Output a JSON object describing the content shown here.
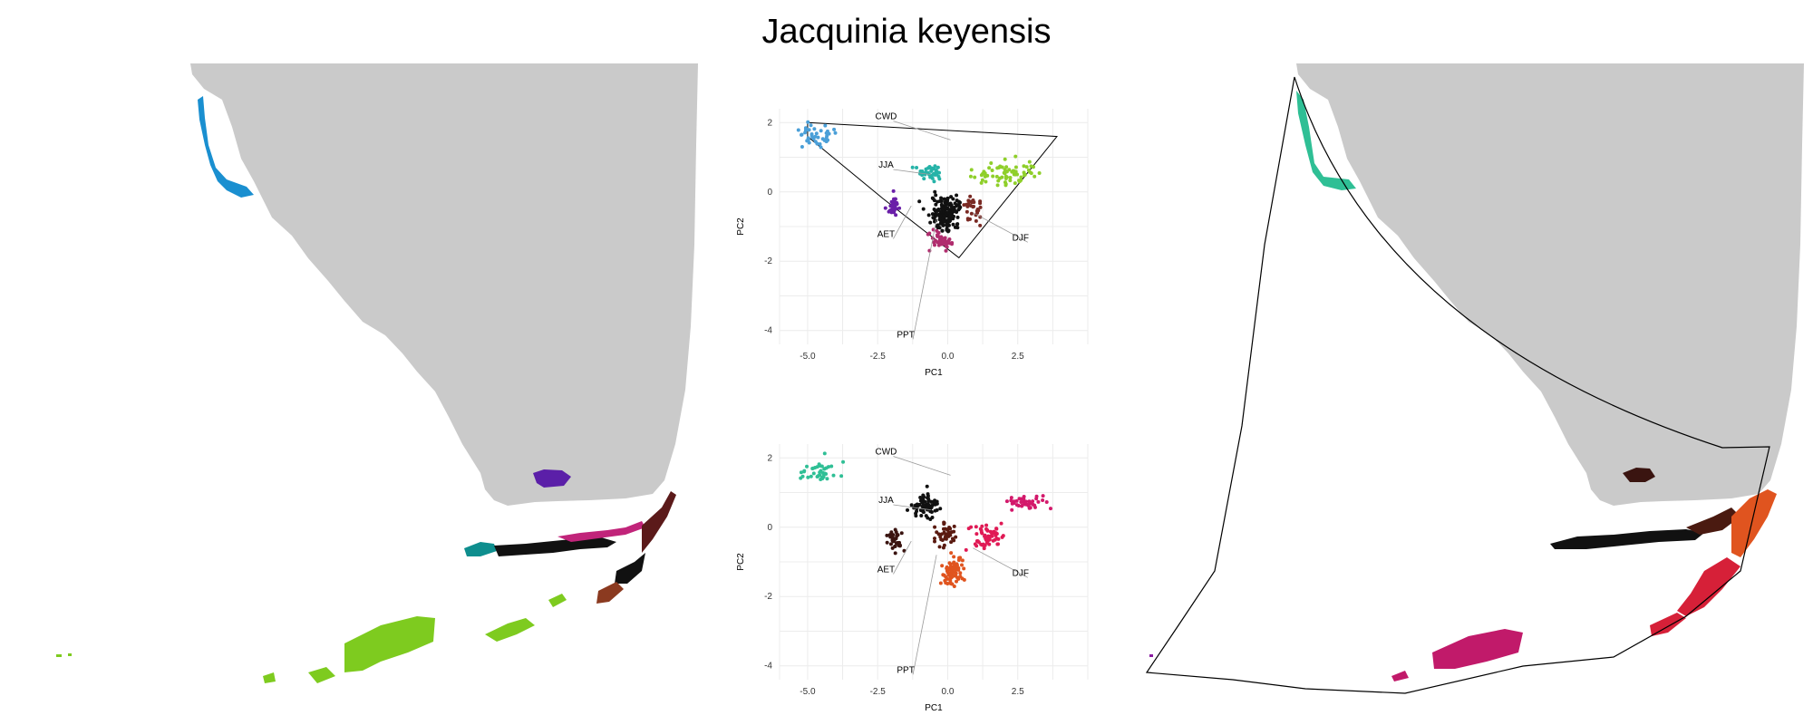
{
  "title": "Jacquinia keyensis",
  "chart_data": [
    {
      "type": "scatter",
      "panel": "pca-top",
      "xlabel": "PC1",
      "ylabel": "PC2",
      "xlim": [
        -6,
        5
      ],
      "ylim": [
        -4.4,
        2.4
      ],
      "xticks": [
        "-5.0",
        "-2.5",
        "0.0",
        "2.5"
      ],
      "xtick_values": [
        -5,
        -2.5,
        0,
        2.5
      ],
      "yticks": [
        "2",
        "0",
        "-2",
        "-4"
      ],
      "ytick_values": [
        2,
        0,
        -2,
        -4
      ],
      "grid": true,
      "vectors": [
        {
          "label": "CWD",
          "end": [
            0.1,
            1.5
          ],
          "label_pos": [
            -2.2,
            2.1
          ]
        },
        {
          "label": "JJA",
          "end": [
            -0.6,
            0.5
          ],
          "label_pos": [
            -2.2,
            0.7
          ]
        },
        {
          "label": "AET",
          "end": [
            -1.3,
            -0.4
          ],
          "label_pos": [
            -2.2,
            -1.3
          ]
        },
        {
          "label": "PPT",
          "end": [
            -0.4,
            -0.8
          ],
          "label_pos": [
            -1.5,
            -4.2
          ]
        },
        {
          "label": "DJF",
          "end": [
            0.9,
            -0.6
          ],
          "label_pos": [
            2.6,
            -1.4
          ]
        }
      ],
      "clusters": [
        {
          "center": [
            -4.6,
            1.6
          ],
          "spread": [
            0.55,
            0.25
          ],
          "count": 40,
          "color": "#4a9fd8"
        },
        {
          "center": [
            -0.6,
            0.6
          ],
          "spread": [
            0.35,
            0.25
          ],
          "count": 40,
          "color": "#26b3a8"
        },
        {
          "center": [
            -1.9,
            -0.4
          ],
          "spread": [
            0.22,
            0.22
          ],
          "count": 30,
          "color": "#6a1fa8"
        },
        {
          "center": [
            -0.1,
            -0.6
          ],
          "spread": [
            0.5,
            0.45
          ],
          "count": 160,
          "color": "#111111"
        },
        {
          "center": [
            -0.2,
            -1.4
          ],
          "spread": [
            0.35,
            0.25
          ],
          "count": 50,
          "color": "#b02d6e"
        },
        {
          "center": [
            2.2,
            0.5
          ],
          "spread": [
            1.0,
            0.35
          ],
          "count": 70,
          "color": "#8fcf2a"
        },
        {
          "center": [
            0.9,
            -0.5
          ],
          "spread": [
            0.3,
            0.3
          ],
          "count": 30,
          "color": "#7a2a24"
        }
      ],
      "hull": [
        [
          -5.0,
          2.0
        ],
        [
          3.9,
          1.6
        ],
        [
          0.4,
          -1.9
        ],
        [
          -2.3,
          -0.2
        ],
        [
          -5.0,
          1.6
        ]
      ]
    },
    {
      "type": "scatter",
      "panel": "pca-bottom",
      "xlabel": "PC1",
      "ylabel": "PC2",
      "xlim": [
        -6,
        5
      ],
      "ylim": [
        -4.4,
        2.4
      ],
      "xticks": [
        "-5.0",
        "-2.5",
        "0.0",
        "2.5"
      ],
      "xtick_values": [
        -5,
        -2.5,
        0,
        2.5
      ],
      "yticks": [
        "2",
        "0",
        "-2",
        "-4"
      ],
      "ytick_values": [
        2,
        0,
        -2,
        -4
      ],
      "grid": true,
      "vectors": [
        {
          "label": "CWD",
          "end": [
            0.1,
            1.5
          ],
          "label_pos": [
            -2.2,
            2.1
          ]
        },
        {
          "label": "JJA",
          "end": [
            -0.6,
            0.5
          ],
          "label_pos": [
            -2.2,
            0.7
          ]
        },
        {
          "label": "AET",
          "end": [
            -1.3,
            -0.4
          ],
          "label_pos": [
            -2.2,
            -1.3
          ]
        },
        {
          "label": "PPT",
          "end": [
            -0.4,
            -0.8
          ],
          "label_pos": [
            -1.5,
            -4.2
          ]
        },
        {
          "label": "DJF",
          "end": [
            0.9,
            -0.6
          ],
          "label_pos": [
            2.6,
            -1.4
          ]
        }
      ],
      "clusters": [
        {
          "center": [
            -4.6,
            1.6
          ],
          "spread": [
            0.5,
            0.25
          ],
          "count": 40,
          "color": "#2fbf95"
        },
        {
          "center": [
            -0.8,
            0.6
          ],
          "spread": [
            0.4,
            0.3
          ],
          "count": 70,
          "color": "#111111"
        },
        {
          "center": [
            -1.9,
            -0.4
          ],
          "spread": [
            0.25,
            0.25
          ],
          "count": 35,
          "color": "#3a1410"
        },
        {
          "center": [
            0.2,
            -1.3
          ],
          "spread": [
            0.35,
            0.3
          ],
          "count": 70,
          "color": "#e0541f"
        },
        {
          "center": [
            1.4,
            -0.3
          ],
          "spread": [
            0.45,
            0.35
          ],
          "count": 60,
          "color": "#e01a55"
        },
        {
          "center": [
            2.8,
            0.7
          ],
          "spread": [
            0.6,
            0.15
          ],
          "count": 40,
          "color": "#d3196b"
        },
        {
          "center": [
            -0.1,
            -0.2
          ],
          "spread": [
            0.3,
            0.3
          ],
          "count": 40,
          "color": "#5a1a10"
        }
      ],
      "hull": []
    }
  ]
}
